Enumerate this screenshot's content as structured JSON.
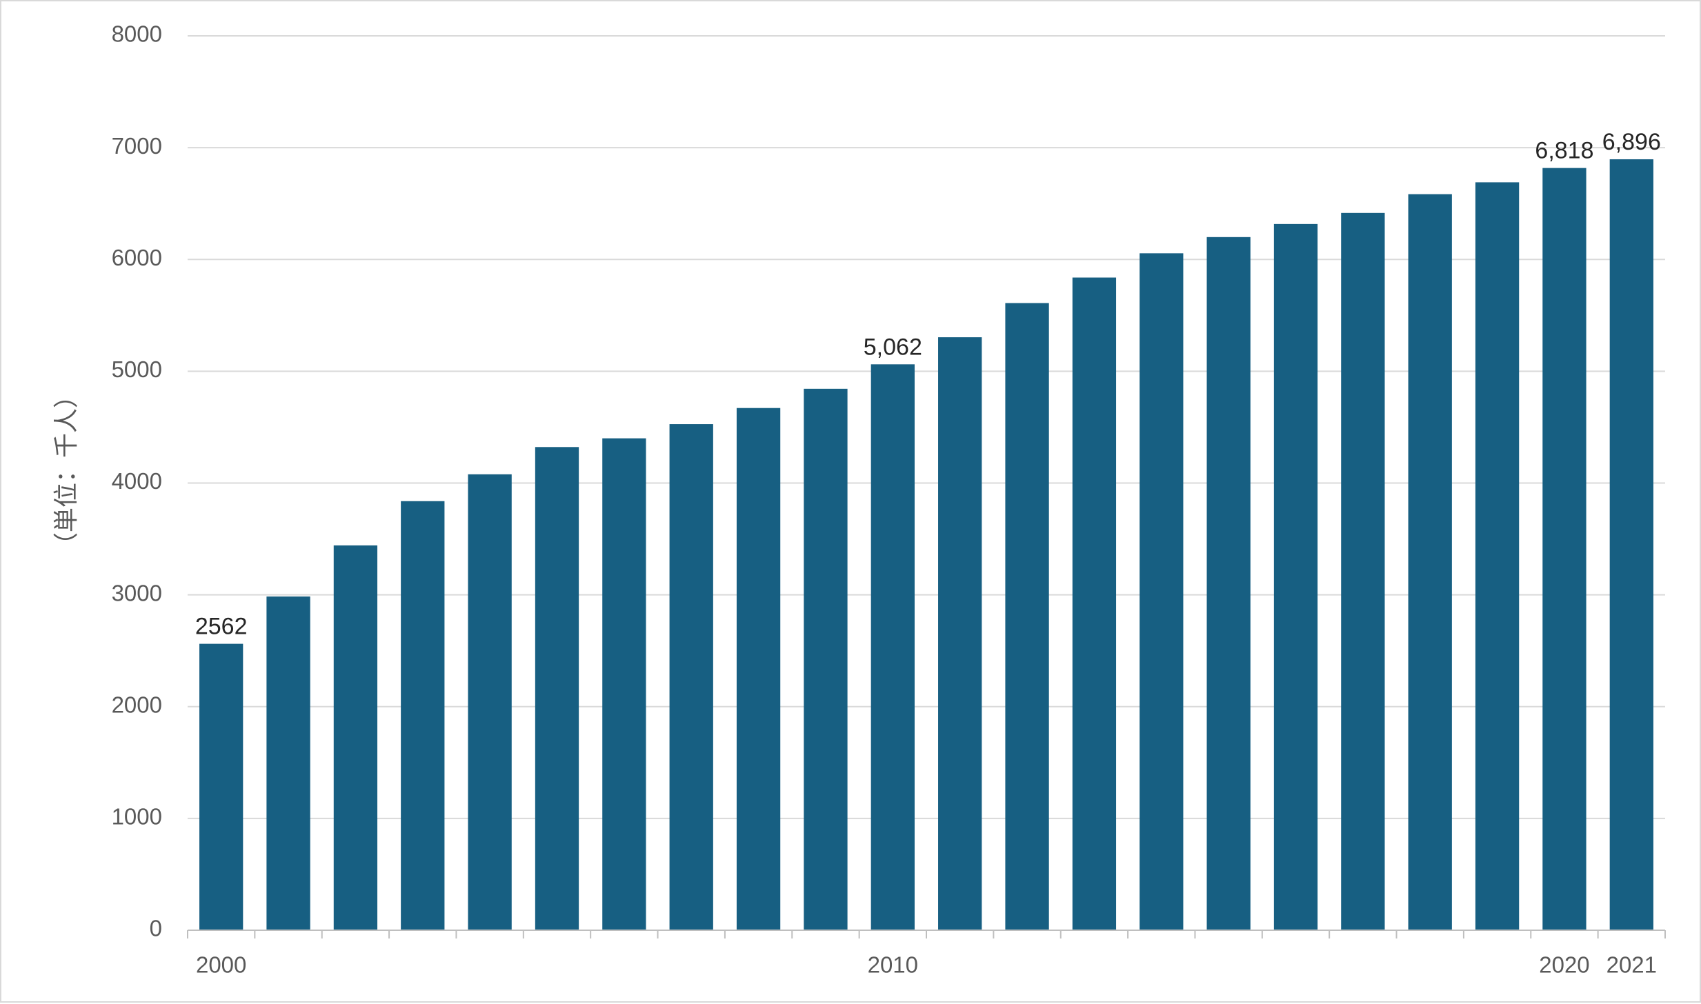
{
  "chart_data": {
    "type": "bar",
    "categories": [
      "2000",
      "2001",
      "2002",
      "2003",
      "2004",
      "2005",
      "2006",
      "2007",
      "2008",
      "2009",
      "2010",
      "2011",
      "2012",
      "2013",
      "2014",
      "2015",
      "2016",
      "2017",
      "2018",
      "2019",
      "2020",
      "2021"
    ],
    "category_labels": [
      "2000",
      "",
      "",
      "",
      "",
      "",
      "",
      "",
      "",
      "",
      "2010",
      "",
      "",
      "",
      "",
      "",
      "",
      "",
      "",
      "",
      "2020",
      "2021"
    ],
    "values": [
      2562,
      2985,
      3442,
      3838,
      4078,
      4322,
      4400,
      4527,
      4671,
      4843,
      5062,
      5304,
      5610,
      5838,
      6055,
      6200,
      6317,
      6416,
      6584,
      6690,
      6818,
      6896
    ],
    "data_labels": {
      "0": "2562",
      "10": "5,062",
      "20": "6,818",
      "21": "6,896"
    },
    "ylabel": "（単位：千人）",
    "ylim": [
      0,
      8000
    ],
    "yticks": [
      "0",
      "1000",
      "2000",
      "3000",
      "4000",
      "5000",
      "6000",
      "7000",
      "8000"
    ],
    "grid": true,
    "legend": "none",
    "colors": {
      "bar": "#175f82",
      "grid": "#d9d9d9",
      "axis": "#bfbfbf",
      "tick_text": "#595959",
      "label_text": "#262626"
    }
  }
}
